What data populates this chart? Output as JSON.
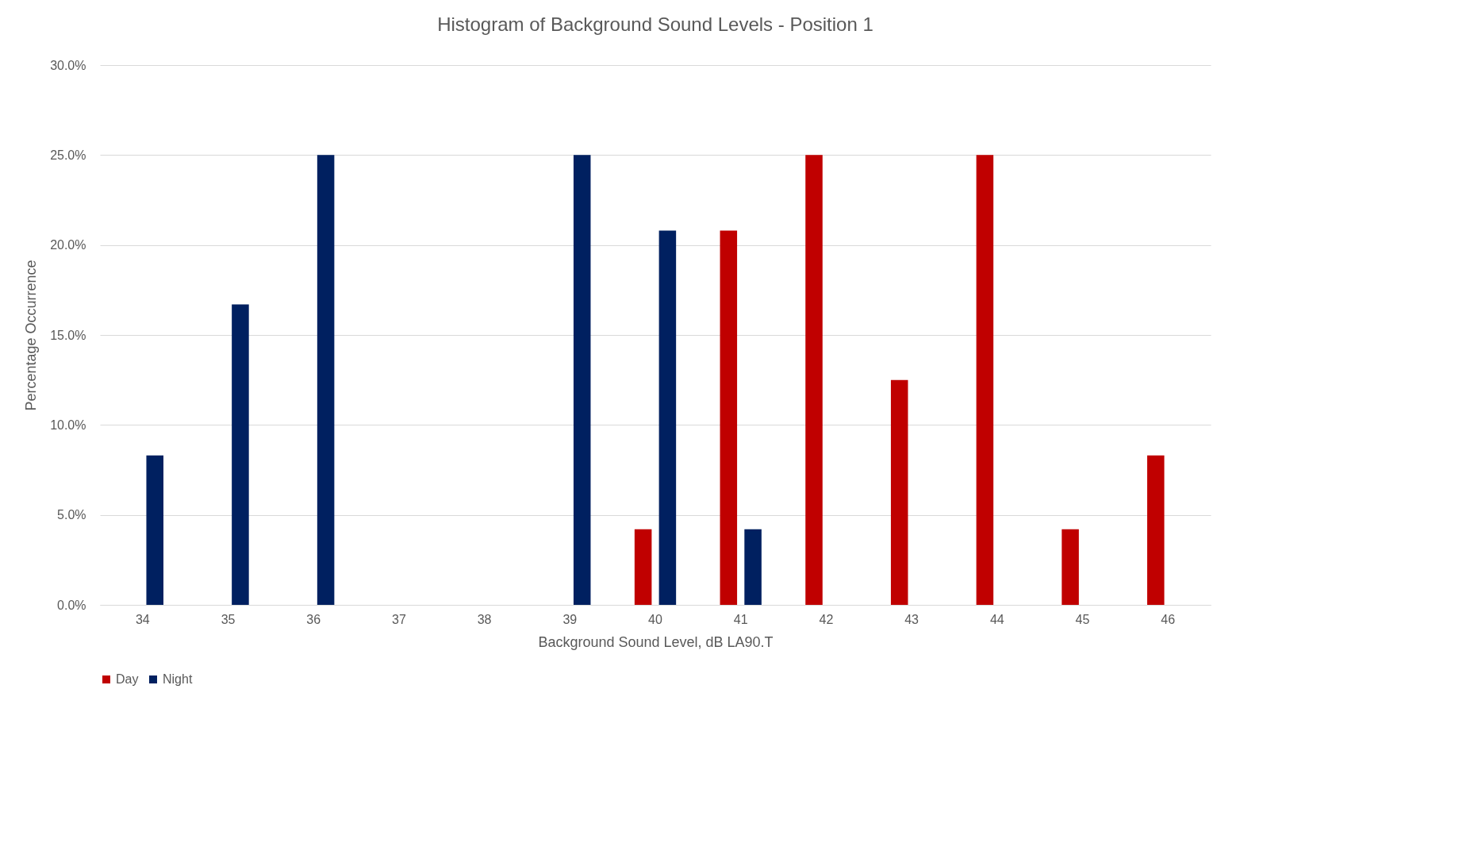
{
  "chart_data": {
    "type": "bar",
    "title": "Histogram of Background Sound Levels - Position 1",
    "xlabel": "Background Sound Level, dB LA90.T",
    "ylabel": "Percentage Occurrence",
    "categories": [
      "34",
      "35",
      "36",
      "37",
      "38",
      "39",
      "40",
      "41",
      "42",
      "43",
      "44",
      "45",
      "46"
    ],
    "series": [
      {
        "name": "Day",
        "color": "#c00000",
        "values": [
          0,
          0,
          0,
          0,
          0,
          0,
          4.2,
          20.8,
          25,
          12.5,
          25,
          4.2,
          8.3
        ]
      },
      {
        "name": "Night",
        "color": "#002060",
        "values": [
          8.3,
          16.7,
          25,
          0,
          0,
          25,
          20.8,
          4.2,
          0,
          0,
          0,
          0,
          0
        ]
      }
    ],
    "ylim": [
      0,
      30
    ],
    "yticks": [
      {
        "value": 0,
        "label": "0.0%"
      },
      {
        "value": 5,
        "label": "5.0%"
      },
      {
        "value": 10,
        "label": "10.0%"
      },
      {
        "value": 15,
        "label": "15.0%"
      },
      {
        "value": 20,
        "label": "20.0%"
      },
      {
        "value": 25,
        "label": "25.0%"
      },
      {
        "value": 30,
        "label": "30.0%"
      }
    ],
    "grid": "y",
    "legend": "bottom"
  }
}
